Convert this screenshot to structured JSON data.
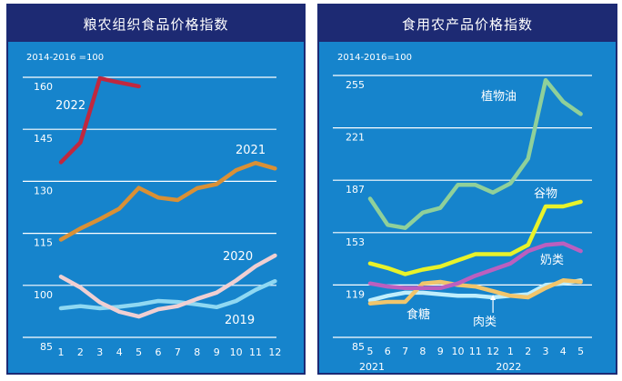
{
  "chart_data": [
    {
      "type": "line",
      "title": "粮农组织食品价格指数",
      "subtitle": "2014-2016 =100",
      "x": [
        1,
        2,
        3,
        4,
        5,
        6,
        7,
        8,
        9,
        10,
        11,
        12
      ],
      "xticks": [
        "1",
        "2",
        "3",
        "4",
        "5",
        "6",
        "7",
        "8",
        "9",
        "10",
        "11",
        "12"
      ],
      "ylim": [
        85,
        160
      ],
      "yticks": [
        85,
        100,
        115,
        130,
        145,
        160
      ],
      "grid": true,
      "series": [
        {
          "name": "2022",
          "color": "#c0283f",
          "x": [
            1,
            2,
            3,
            4,
            5
          ],
          "values": [
            135.5,
            141.2,
            159.7,
            158.5,
            157.4
          ]
        },
        {
          "name": "2021",
          "color": "#d99035",
          "x": [
            1,
            2,
            3,
            4,
            5,
            6,
            7,
            8,
            9,
            10,
            11,
            12
          ],
          "values": [
            113.2,
            116.4,
            119.1,
            122.1,
            128.1,
            125.3,
            124.6,
            128.0,
            129.2,
            133.2,
            135.3,
            133.7
          ]
        },
        {
          "name": "2020",
          "color": "#f0cfd2",
          "x": [
            1,
            2,
            3,
            4,
            5,
            6,
            7,
            8,
            9,
            10,
            11,
            12
          ],
          "values": [
            102.5,
            99.4,
            95.1,
            92.4,
            91.0,
            93.1,
            94.0,
            96.1,
            97.9,
            101.4,
            105.5,
            108.6
          ]
        },
        {
          "name": "2019",
          "color": "#8fd8f2",
          "x": [
            1,
            2,
            3,
            4,
            5,
            6,
            7,
            8,
            9,
            10,
            11,
            12
          ],
          "values": [
            93.4,
            94.0,
            93.4,
            93.8,
            94.5,
            95.5,
            95.2,
            94.5,
            93.7,
            95.5,
            98.7,
            101.2
          ]
        }
      ]
    },
    {
      "type": "line",
      "title": "食用农产品价格指数",
      "subtitle": "2014-2016=100",
      "xticks": [
        "5",
        "6",
        "7",
        "8",
        "9",
        "10",
        "11",
        "12",
        "1",
        "2",
        "3",
        "4",
        "5"
      ],
      "xgroups": [
        {
          "label": "2021",
          "at": 0
        },
        {
          "label": "2022",
          "at": 8
        }
      ],
      "ylim": [
        85,
        255
      ],
      "yticks": [
        85,
        119,
        153,
        187,
        221,
        255
      ],
      "grid": true,
      "series": [
        {
          "name": "植物油",
          "color": "#8fd09a",
          "values": [
            175,
            158,
            156,
            166,
            169,
            184,
            184,
            179,
            185,
            201,
            252,
            238,
            230
          ]
        },
        {
          "name": "谷物",
          "color": "#e8f22a",
          "values": [
            133,
            130,
            126,
            129,
            131,
            135,
            139,
            139,
            139,
            145,
            170,
            170,
            173
          ]
        },
        {
          "name": "奶类",
          "color": "#bb5fbf",
          "values": [
            120,
            118,
            117,
            117,
            117,
            120,
            125,
            129,
            133,
            141,
            145,
            146,
            141
          ]
        },
        {
          "name": "食糖",
          "color": "#f1c56b",
          "values": [
            107,
            108,
            108,
            120,
            121,
            119,
            118,
            115,
            112,
            111,
            117,
            122,
            121
          ]
        },
        {
          "name": "肉类",
          "color": "#bfeefc",
          "values": [
            109,
            112,
            114,
            114,
            113,
            112,
            112,
            111,
            112,
            113,
            119,
            120,
            122
          ]
        }
      ]
    }
  ]
}
